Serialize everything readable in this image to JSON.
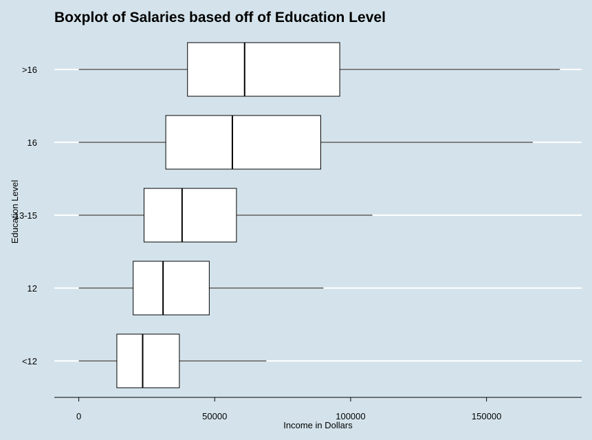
{
  "chart_data": {
    "type": "boxplot",
    "title": "Boxplot of Salaries based off of Education Level",
    "xlabel": "Income in Dollars",
    "ylabel": "Education Level",
    "xlim": [
      -9000,
      185000
    ],
    "x_ticks": [
      0,
      50000,
      100000,
      150000
    ],
    "x_tick_labels": [
      "0",
      "50000",
      "100000",
      "150000"
    ],
    "grid": "horizontal",
    "colors": {
      "background": "#d4e3eb",
      "box_fill": "#ffffff",
      "stroke": "#000000",
      "gridline": "#ffffff"
    },
    "categories": [
      "<12",
      "12",
      "13-15",
      "16",
      ">16"
    ],
    "boxes": [
      {
        "label": "<12",
        "min": 0,
        "q1": 14000,
        "median": 23500,
        "q3": 37000,
        "max": 69000
      },
      {
        "label": "12",
        "min": 0,
        "q1": 20000,
        "median": 31000,
        "q3": 48000,
        "max": 90000
      },
      {
        "label": "13-15",
        "min": 0,
        "q1": 24000,
        "median": 38000,
        "q3": 58000,
        "max": 108000
      },
      {
        "label": "16",
        "min": 0,
        "q1": 32000,
        "median": 56500,
        "q3": 89000,
        "max": 167000
      },
      {
        "label": ">16",
        "min": 0,
        "q1": 40000,
        "median": 61000,
        "q3": 96000,
        "max": 177000
      }
    ]
  }
}
